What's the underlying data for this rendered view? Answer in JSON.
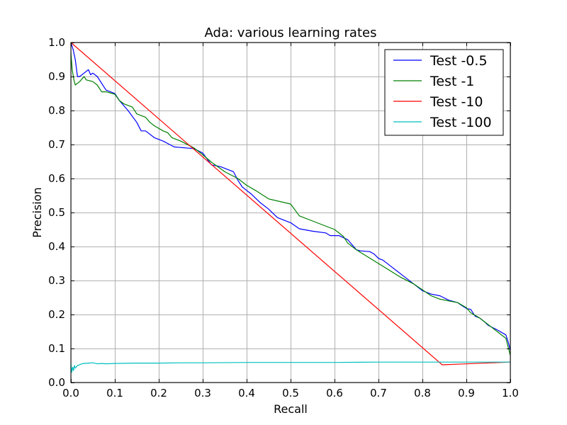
{
  "chart_data": {
    "type": "line",
    "title": "Ada: various learning rates",
    "xlabel": "Recall",
    "ylabel": "Precision",
    "xlim": [
      0.0,
      1.0
    ],
    "ylim": [
      0.0,
      1.0
    ],
    "xticks": [
      "0.0",
      "0.1",
      "0.2",
      "0.3",
      "0.4",
      "0.5",
      "0.6",
      "0.7",
      "0.8",
      "0.9",
      "1.0"
    ],
    "yticks": [
      "0.0",
      "0.1",
      "0.2",
      "0.3",
      "0.4",
      "0.5",
      "0.6",
      "0.7",
      "0.8",
      "0.9",
      "1.0"
    ],
    "grid": true,
    "legend_position": "top-right",
    "series": [
      {
        "name": "Test -0.5",
        "color": "#0000ff",
        "x": [
          0.0,
          0.005,
          0.01,
          0.015,
          0.02,
          0.03,
          0.04,
          0.045,
          0.05,
          0.055,
          0.06,
          0.07,
          0.08,
          0.09,
          0.1,
          0.11,
          0.13,
          0.15,
          0.16,
          0.17,
          0.19,
          0.21,
          0.235,
          0.28,
          0.3,
          0.32,
          0.34,
          0.37,
          0.38,
          0.39,
          0.4,
          0.41,
          0.43,
          0.45,
          0.47,
          0.5,
          0.52,
          0.55,
          0.58,
          0.59,
          0.61,
          0.63,
          0.65,
          0.66,
          0.68,
          0.69,
          0.7,
          0.71,
          0.73,
          0.76,
          0.8,
          0.82,
          0.84,
          0.86,
          0.88,
          0.89,
          0.9,
          0.91,
          0.92,
          0.93,
          0.94,
          0.95,
          0.97,
          0.99,
          0.995,
          1.0
        ],
        "y": [
          1.0,
          0.98,
          0.95,
          0.9,
          0.9,
          0.91,
          0.92,
          0.905,
          0.91,
          0.905,
          0.9,
          0.88,
          0.86,
          0.855,
          0.85,
          0.83,
          0.8,
          0.765,
          0.74,
          0.74,
          0.72,
          0.71,
          0.693,
          0.688,
          0.675,
          0.64,
          0.635,
          0.62,
          0.595,
          0.575,
          0.565,
          0.555,
          0.53,
          0.51,
          0.485,
          0.47,
          0.452,
          0.445,
          0.44,
          0.432,
          0.432,
          0.42,
          0.39,
          0.387,
          0.385,
          0.378,
          0.365,
          0.36,
          0.34,
          0.31,
          0.27,
          0.26,
          0.255,
          0.242,
          0.235,
          0.226,
          0.218,
          0.215,
          0.195,
          0.19,
          0.18,
          0.168,
          0.155,
          0.14,
          0.12,
          0.095
        ]
      },
      {
        "name": "Test -1",
        "color": "#008000",
        "x": [
          0.0,
          0.003,
          0.007,
          0.01,
          0.02,
          0.03,
          0.035,
          0.05,
          0.06,
          0.07,
          0.08,
          0.1,
          0.11,
          0.12,
          0.14,
          0.15,
          0.16,
          0.17,
          0.18,
          0.19,
          0.21,
          0.22,
          0.23,
          0.25,
          0.28,
          0.3,
          0.32,
          0.35,
          0.38,
          0.4,
          0.42,
          0.45,
          0.5,
          0.52,
          0.55,
          0.6,
          0.62,
          0.63,
          0.65,
          0.7,
          0.75,
          0.78,
          0.82,
          0.84,
          0.86,
          0.88,
          0.9,
          0.91,
          0.93,
          0.94,
          0.96,
          0.97,
          0.99,
          1.0
        ],
        "y": [
          0.97,
          0.92,
          0.89,
          0.875,
          0.885,
          0.9,
          0.89,
          0.885,
          0.875,
          0.855,
          0.855,
          0.848,
          0.83,
          0.82,
          0.81,
          0.79,
          0.785,
          0.78,
          0.765,
          0.755,
          0.74,
          0.735,
          0.72,
          0.71,
          0.69,
          0.67,
          0.648,
          0.62,
          0.6,
          0.58,
          0.565,
          0.54,
          0.525,
          0.49,
          0.475,
          0.45,
          0.43,
          0.41,
          0.39,
          0.35,
          0.31,
          0.29,
          0.255,
          0.245,
          0.24,
          0.235,
          0.22,
          0.205,
          0.19,
          0.18,
          0.16,
          0.15,
          0.13,
          0.08
        ]
      },
      {
        "name": "Test -10",
        "color": "#ff0000",
        "x": [
          0.0,
          0.845,
          1.0
        ],
        "y": [
          1.0,
          0.052,
          0.06
        ]
      },
      {
        "name": "Test -100",
        "color": "#00bfbf",
        "x": [
          0.0,
          0.002,
          0.004,
          0.006,
          0.008,
          0.01,
          0.015,
          0.02,
          0.025,
          0.03,
          0.04,
          0.05,
          0.06,
          0.07,
          0.08,
          0.1,
          0.15,
          0.2,
          0.25,
          0.3,
          0.4,
          0.5,
          0.6,
          0.7,
          0.8,
          0.9,
          1.0
        ],
        "y": [
          0.058,
          0.03,
          0.045,
          0.035,
          0.05,
          0.042,
          0.05,
          0.052,
          0.055,
          0.056,
          0.057,
          0.058,
          0.055,
          0.056,
          0.055,
          0.056,
          0.057,
          0.057,
          0.058,
          0.058,
          0.059,
          0.059,
          0.059,
          0.06,
          0.06,
          0.06,
          0.06
        ]
      }
    ]
  }
}
